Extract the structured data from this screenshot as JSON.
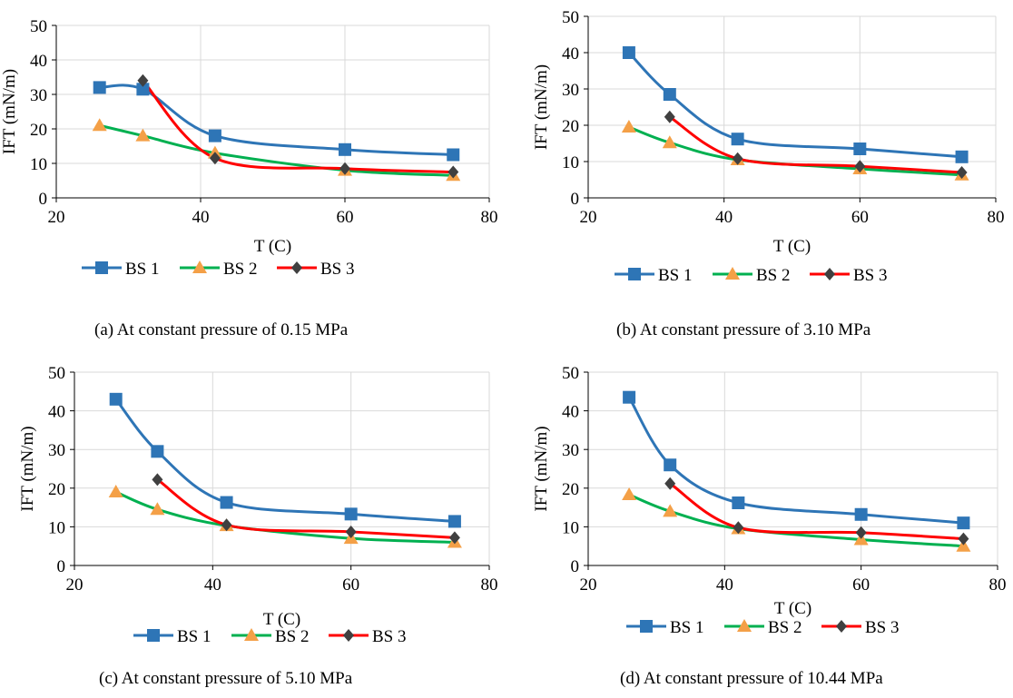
{
  "chart_data": [
    {
      "type": "line",
      "panel": "a",
      "caption": "(a) At constant pressure of 0.15 MPa",
      "xlabel": "T (C)",
      "ylabel": "IFT (mN/m)",
      "xlim": [
        20,
        80
      ],
      "ylim": [
        0,
        50
      ],
      "xticks": [
        20,
        40,
        60,
        80
      ],
      "yticks": [
        0,
        10,
        20,
        30,
        40,
        50
      ],
      "grid": true,
      "legend": "bottom",
      "series": [
        {
          "name": "BS 1",
          "color": "#2E75B6",
          "marker": "square",
          "x": [
            26,
            32,
            42,
            60,
            75
          ],
          "y": [
            32,
            31.5,
            18,
            14,
            12.5
          ]
        },
        {
          "name": "BS 2",
          "color": "#00B050",
          "marker": "triangle",
          "x": [
            26,
            32,
            42,
            60,
            75
          ],
          "y": [
            21,
            18,
            13,
            8,
            6.5
          ]
        },
        {
          "name": "BS 3",
          "color": "#FF0000",
          "marker": "diamond",
          "x": [
            32,
            42,
            60,
            75
          ],
          "y": [
            34,
            11.5,
            8.5,
            7.5
          ]
        }
      ]
    },
    {
      "type": "line",
      "panel": "b",
      "caption": "(b) At constant pressure of 3.10 MPa",
      "xlabel": "T (C)",
      "ylabel": "IFT (mN/m)",
      "xlim": [
        20,
        80
      ],
      "ylim": [
        0,
        50
      ],
      "xticks": [
        20,
        40,
        60,
        80
      ],
      "yticks": [
        0,
        10,
        20,
        30,
        40,
        50
      ],
      "grid": true,
      "legend": "bottom",
      "series": [
        {
          "name": "BS 1",
          "color": "#2E75B6",
          "marker": "square",
          "x": [
            26,
            32,
            42,
            60,
            75
          ],
          "y": [
            40,
            28.5,
            16.2,
            13.5,
            11.3
          ]
        },
        {
          "name": "BS 2",
          "color": "#00B050",
          "marker": "triangle",
          "x": [
            26,
            32,
            42,
            60,
            75
          ],
          "y": [
            19.5,
            15.2,
            10.5,
            8,
            6.3
          ]
        },
        {
          "name": "BS 3",
          "color": "#FF0000",
          "marker": "diamond",
          "x": [
            32,
            42,
            60,
            75
          ],
          "y": [
            22.3,
            10.8,
            8.7,
            7
          ]
        }
      ]
    },
    {
      "type": "line",
      "panel": "c",
      "caption": "(c) At constant pressure of 5.10 MPa",
      "xlabel": "T (C)",
      "ylabel": "IFT (mN/m)",
      "xlim": [
        20,
        80
      ],
      "ylim": [
        0,
        50
      ],
      "xticks": [
        20,
        40,
        60,
        80
      ],
      "yticks": [
        0,
        10,
        20,
        30,
        40,
        50
      ],
      "grid": true,
      "legend": "bottom",
      "series": [
        {
          "name": "BS 1",
          "color": "#2E75B6",
          "marker": "square",
          "x": [
            26,
            32,
            42,
            60,
            75
          ],
          "y": [
            43,
            29.5,
            16.3,
            13.3,
            11.4
          ]
        },
        {
          "name": "BS 2",
          "color": "#00B050",
          "marker": "triangle",
          "x": [
            26,
            32,
            42,
            60,
            75
          ],
          "y": [
            19,
            14.5,
            10.3,
            7,
            6
          ]
        },
        {
          "name": "BS 3",
          "color": "#FF0000",
          "marker": "diamond",
          "x": [
            32,
            42,
            60,
            75
          ],
          "y": [
            22.2,
            10.5,
            8.7,
            7.2
          ]
        }
      ]
    },
    {
      "type": "line",
      "panel": "d",
      "caption": "(d) At constant pressure of 10.44 MPa",
      "xlabel": "T (C)",
      "ylabel": "IFT (mN/m)",
      "xlim": [
        20,
        80
      ],
      "ylim": [
        0,
        50
      ],
      "xticks": [
        20,
        40,
        60,
        80
      ],
      "yticks": [
        0,
        10,
        20,
        30,
        40,
        50
      ],
      "grid": true,
      "legend": "bottom",
      "series": [
        {
          "name": "BS 1",
          "color": "#2E75B6",
          "marker": "square",
          "x": [
            26,
            32,
            42,
            60,
            75
          ],
          "y": [
            43.5,
            26,
            16.2,
            13.2,
            11
          ]
        },
        {
          "name": "BS 2",
          "color": "#00B050",
          "marker": "triangle",
          "x": [
            26,
            32,
            42,
            60,
            75
          ],
          "y": [
            18.3,
            14,
            9.5,
            6.7,
            5
          ]
        },
        {
          "name": "BS 3",
          "color": "#FF0000",
          "marker": "diamond",
          "x": [
            32,
            42,
            60,
            75
          ],
          "y": [
            21.2,
            9.8,
            8.5,
            6.9
          ]
        }
      ]
    }
  ]
}
